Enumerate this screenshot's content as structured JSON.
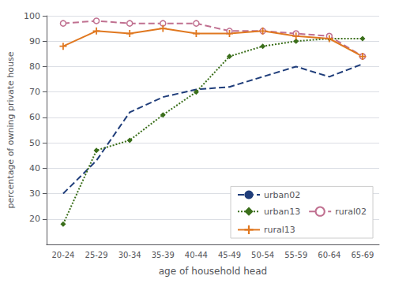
{
  "chart_data": {
    "type": "line",
    "categories": [
      "20-24",
      "25-29",
      "30-34",
      "35-39",
      "40-44",
      "45-49",
      "50-54",
      "55-59",
      "60-64",
      "65-69"
    ],
    "series": [
      {
        "name": "urban02",
        "color": "#1f3d7a",
        "line_style": "dashed",
        "marker": "none",
        "values": [
          30,
          43,
          62,
          68,
          71,
          72,
          76,
          80,
          76,
          81
        ]
      },
      {
        "name": "urban13",
        "color": "#3a6e1a",
        "line_style": "dotted",
        "marker": "diamond",
        "values": [
          18,
          47,
          51,
          61,
          70,
          84,
          88,
          90,
          91,
          91
        ]
      },
      {
        "name": "rural02",
        "color": "#c07090",
        "line_style": "dashed",
        "marker": "open_circle",
        "values": [
          97,
          98,
          97,
          97,
          97,
          94,
          94,
          93,
          92,
          84
        ]
      },
      {
        "name": "rural13",
        "color": "#e07820",
        "line_style": "solid",
        "marker": "plus",
        "values": [
          88,
          94,
          93,
          95,
          93,
          93,
          94,
          92,
          91,
          84
        ]
      }
    ],
    "xlabel": "age of household head",
    "ylabel": "percentage of owning private house",
    "ylim": [
      10,
      100
    ],
    "yticks": [
      20,
      30,
      40,
      50,
      60,
      70,
      80,
      90,
      100
    ],
    "grid": true,
    "legend": "lower right"
  }
}
